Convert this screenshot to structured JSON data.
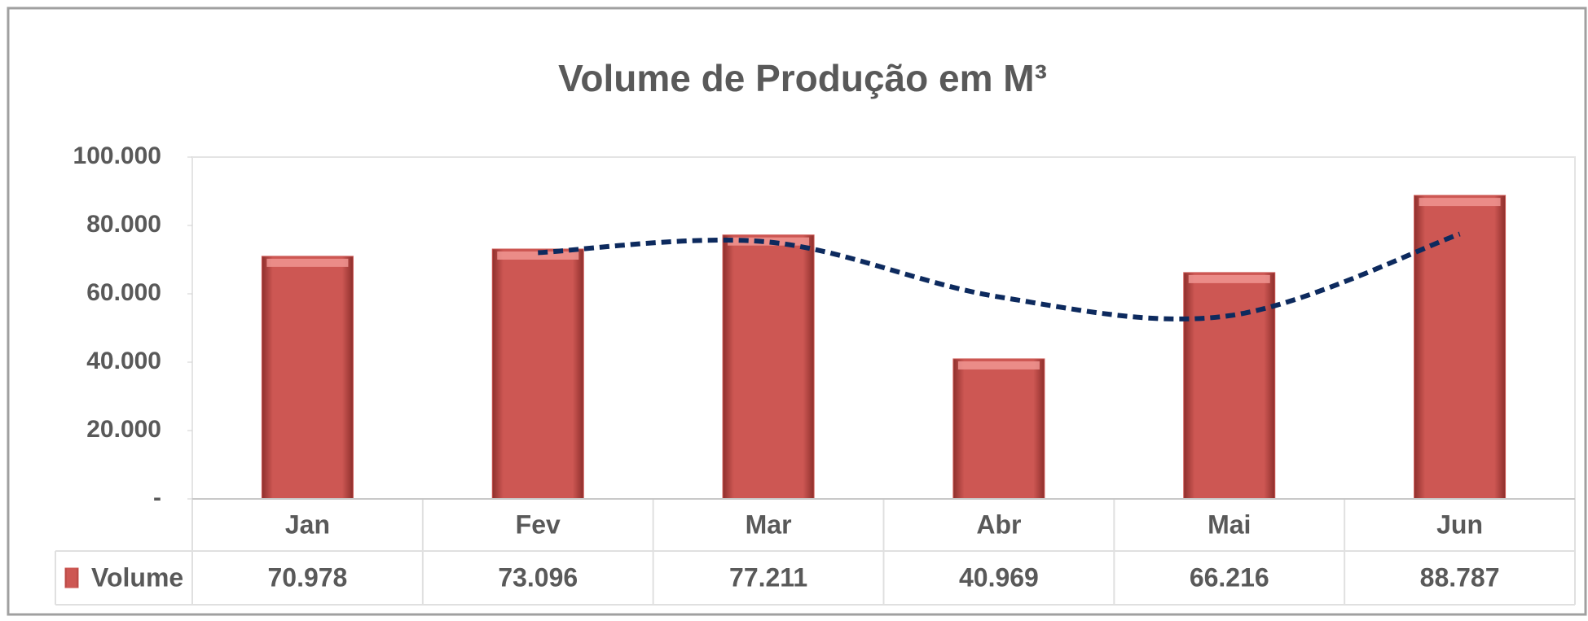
{
  "chart_data": {
    "type": "bar",
    "title": "Volume de Produção em M³",
    "categories": [
      "Jan",
      "Fev",
      "Mar",
      "Abr",
      "Mai",
      "Jun"
    ],
    "series": [
      {
        "name": "Volume",
        "color": "#cd5753",
        "values": [
          70978,
          73096,
          77211,
          40969,
          66216,
          88787
        ],
        "value_labels": [
          "70.978",
          "73.096",
          "77.211",
          "40.969",
          "66.216",
          "88.787"
        ]
      }
    ],
    "trendline": {
      "color": "#0d2a5e",
      "values": [
        null,
        72037,
        75154,
        59090,
        53593,
        77502
      ]
    },
    "ylim": [
      0,
      100000
    ],
    "yticks": [
      {
        "value": 0,
        "label": "-"
      },
      {
        "value": 20000,
        "label": "20.000"
      },
      {
        "value": 40000,
        "label": "40.000"
      },
      {
        "value": 60000,
        "label": "60.000"
      },
      {
        "value": 80000,
        "label": "80.000"
      },
      {
        "value": 100000,
        "label": "100.000"
      }
    ],
    "data_table": true
  }
}
